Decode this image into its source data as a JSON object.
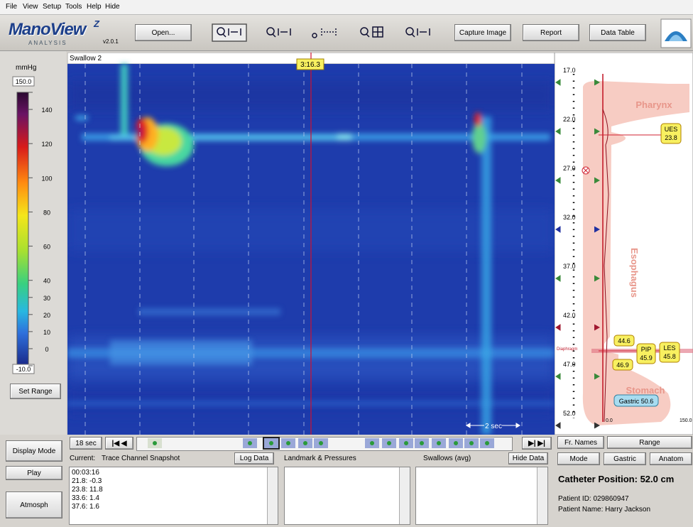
{
  "menu": [
    "File",
    "View",
    "Setup",
    "Tools",
    "Help",
    "Hide"
  ],
  "toolbar": {
    "logo": "ManoView",
    "logo_sup": "Z",
    "logo_sub": "ANALYSIS",
    "version": "v2.0.1",
    "buttons": [
      "Open...",
      "Capture Image",
      "Report",
      "Data Table"
    ]
  },
  "scale": {
    "unit": "mmHg",
    "ticks": [
      {
        "value": 150,
        "label": "150.0"
      },
      140,
      120,
      100,
      80,
      60,
      40,
      30,
      20,
      10,
      0,
      {
        "value": -10,
        "label": "-10.0"
      }
    ],
    "button": "Set Range"
  },
  "left_buttons": [
    "Display Mode",
    "Play",
    "Atmosph"
  ],
  "plot": {
    "title": "Swallow 2",
    "cursor": "3:16.3",
    "time_scale": "2 sec"
  },
  "anatomy": {
    "depths": [
      "17.0",
      "22.0",
      "27.0",
      "32.0",
      "37.0",
      "42.0",
      "47.0",
      "52.0"
    ],
    "regions": [
      "Pharynx",
      "Esophagus",
      "Stomach"
    ],
    "diaphragm": "Diaphragm",
    "markers": [
      {
        "name": "UES",
        "value": "23.8"
      },
      {
        "name": "PIP",
        "value": "45.9"
      },
      {
        "name": "LES",
        "value": "45.8"
      }
    ],
    "labels": [
      "44.6",
      "46.9"
    ],
    "gastric": "Gastric 50.6",
    "axis": [
      "0.0",
      "150.0"
    ]
  },
  "timeline": {
    "duration": "18 sec"
  },
  "data_panel": {
    "current_label": "Current:",
    "current": "Trace Channel Snapshot",
    "log_button": "Log Data",
    "landmarks": "Landmark & Pressures",
    "swallows": "Swallows (avg)",
    "hide_button": "Hide Data",
    "lines": [
      "00:03:16",
      "21.8: -0.3",
      "23.8: 11.8",
      "33.6: 1.4",
      "37.6: 1.6"
    ]
  },
  "side_buttons": [
    "Fr. Names",
    "Range",
    "Mode",
    "Gastric",
    "Anatom"
  ],
  "catheter": "Catheter Position: 52.0 cm",
  "patient_id": "Patient ID: 029860947",
  "patient_name": "Patient Name: Harry Jackson"
}
